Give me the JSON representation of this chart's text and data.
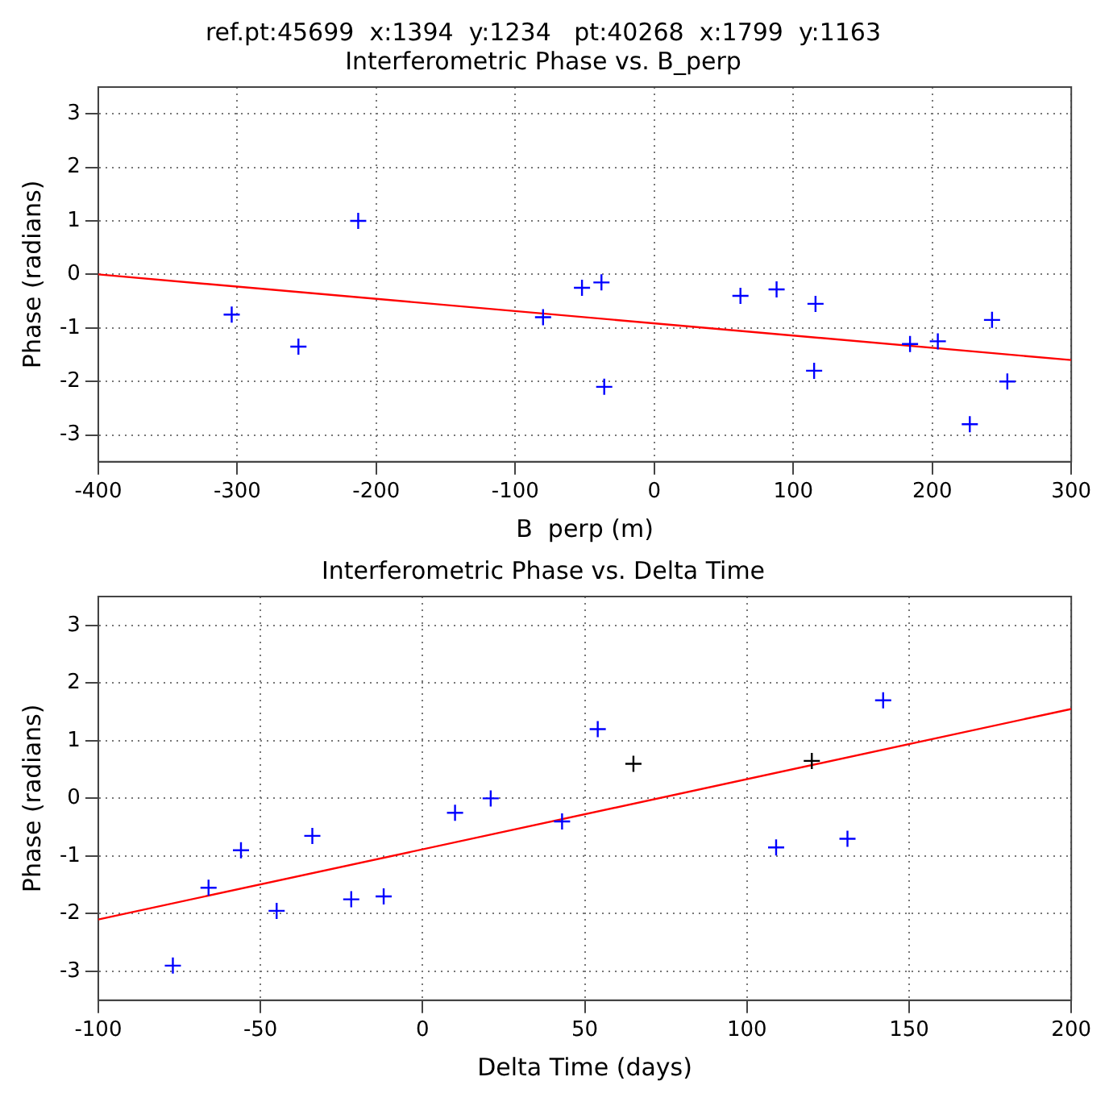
{
  "chart_data": [
    {
      "type": "scatter",
      "title": "ref.pt:45699  x:1394  y:1234   pt:40268  x:1799  y:1163",
      "subtitle": "Interferometric Phase vs. B_perp",
      "xlabel": "B  perp (m)",
      "ylabel": "Phase (radians)",
      "xlim": [
        -400,
        300
      ],
      "xticks": [
        -400,
        -300,
        -200,
        -100,
        0,
        100,
        200,
        300
      ],
      "ylim": [
        -3.5,
        3.5
      ],
      "yticks": [
        -3,
        -2,
        -1,
        0,
        1,
        2,
        3
      ],
      "grid": true,
      "legend": false,
      "series": [
        {
          "marker": "cross",
          "color": "#0000ff",
          "x": [
            -304,
            -256,
            -213,
            -80,
            -52,
            -38,
            -36,
            62,
            88,
            116,
            115,
            184,
            204,
            227,
            243,
            254
          ],
          "values": [
            -0.75,
            -1.35,
            1.0,
            -0.8,
            -0.25,
            -0.15,
            -2.1,
            -0.4,
            -0.28,
            -0.55,
            -1.8,
            -1.3,
            -1.25,
            -2.8,
            -0.85,
            -2.0
          ]
        },
        {
          "type": "line",
          "marker": "none",
          "color": "#ff0000",
          "x": [
            -400,
            300
          ],
          "values": [
            0.0,
            -1.6
          ]
        }
      ]
    },
    {
      "type": "scatter",
      "title": "Interferometric Phase vs. Delta Time",
      "xlabel": "Delta Time (days)",
      "ylabel": "Phase (radians)",
      "xlim": [
        -100,
        200
      ],
      "xticks": [
        -100,
        -50,
        0,
        50,
        100,
        150,
        200
      ],
      "ylim": [
        -3.5,
        3.5
      ],
      "yticks": [
        -3,
        -2,
        -1,
        0,
        1,
        2,
        3
      ],
      "grid": true,
      "legend": false,
      "series": [
        {
          "marker": "cross",
          "colors": [
            "#0000ff",
            "#0000ff",
            "#0000ff",
            "#0000ff",
            "#0000ff",
            "#0000ff",
            "#0000ff",
            "#0000ff",
            "#0000ff",
            "#0000ff",
            "#0000ff",
            "#000000",
            "#0000ff",
            "#000000",
            "#0000ff",
            "#0000ff"
          ],
          "x": [
            -77,
            -66,
            -56,
            -45,
            -34,
            -22,
            -12,
            10,
            21,
            43,
            54,
            65,
            109,
            120,
            131,
            142
          ],
          "values": [
            -2.9,
            -1.55,
            -0.9,
            -1.95,
            -0.65,
            -1.75,
            -1.7,
            -0.25,
            0.0,
            -0.4,
            1.2,
            0.6,
            -0.85,
            0.65,
            -0.7,
            1.7
          ]
        },
        {
          "type": "line",
          "marker": "none",
          "color": "#ff0000",
          "x": [
            -100,
            200
          ],
          "values": [
            -2.1,
            1.55
          ]
        }
      ]
    }
  ]
}
